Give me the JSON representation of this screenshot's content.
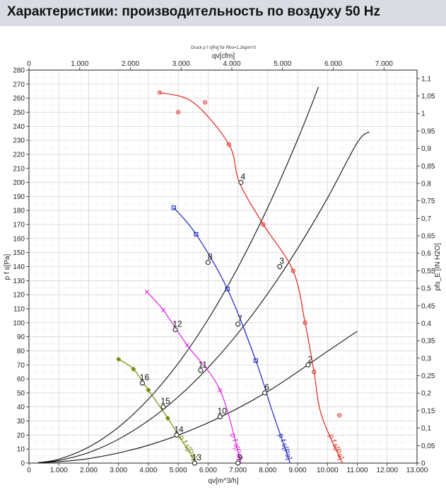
{
  "header": {
    "title": "Характеристики: производительность по воздуху 50 Hz"
  },
  "chart_data": {
    "type": "line",
    "title": "Druck p f s[Pa] für Rho=1,2kg/m^3",
    "xlabel": "qv[m^3/h]",
    "x2label": "qv[cfm]",
    "ylabel": "p f s[Pa]",
    "y2label": "pfs_E [IN H2O]",
    "xlim": [
      0,
      13000
    ],
    "ylim": [
      0,
      280
    ],
    "x2lim": [
      0,
      7651
    ],
    "y2lim": [
      0,
      1.124
    ],
    "grid": true,
    "x_ticks": [
      0,
      1000,
      2000,
      3000,
      4000,
      5000,
      6000,
      7000,
      8000,
      9000,
      10000,
      11000,
      12000,
      13000
    ],
    "x_tick_labels": [
      "0",
      "1.000",
      "2.000",
      "3.000",
      "4.000",
      "5.000",
      "6.000",
      "7.000",
      "8.000",
      "9.000",
      "10.000",
      "11.000",
      "12.000",
      "13.000"
    ],
    "y_ticks": [
      0,
      10,
      20,
      30,
      40,
      50,
      60,
      70,
      80,
      90,
      100,
      110,
      120,
      130,
      140,
      150,
      160,
      170,
      180,
      190,
      200,
      210,
      220,
      230,
      240,
      250,
      260,
      270,
      280
    ],
    "y_tick_labels": [
      "0",
      "10",
      "20",
      "30",
      "40",
      "50",
      "60",
      "70",
      "80",
      "90",
      "100",
      "110",
      "120",
      "130",
      "140",
      "150",
      "160",
      "170",
      "180",
      "190",
      "200",
      "210",
      "220",
      "230",
      "240",
      "250",
      "260",
      "270",
      "280"
    ],
    "x2_ticks": [
      0,
      1000,
      2000,
      3000,
      4000,
      5000,
      6000,
      7000
    ],
    "x2_tick_labels": [
      "0",
      "1.000",
      "2.000",
      "3.000",
      "4.000",
      "5.000",
      "6.000",
      "7.000"
    ],
    "y2_ticks": [
      0,
      0.05,
      0.1,
      0.15,
      0.2,
      0.25,
      0.3,
      0.35,
      0.4,
      0.45,
      0.5,
      0.55,
      0.6,
      0.65,
      0.7,
      0.75,
      0.8,
      0.85,
      0.9,
      0.95,
      1.0,
      1.05,
      1.1
    ],
    "y2_tick_labels": [
      "0",
      "0,05",
      "0,1",
      "0,15",
      "0,2",
      "0,25",
      "0,3",
      "0,35",
      "0,4",
      "0,45",
      "0,5",
      "0,55",
      "0,6",
      "0,65",
      "0,7",
      "0,75",
      "0,8",
      "0,85",
      "0,9",
      "0,95",
      "1",
      "1,05",
      "1,1"
    ],
    "series": [
      {
        "label": "p f s[Pa]",
        "color": "#e0281e",
        "marker": "circle",
        "x": [
          4380,
          5500,
          6700,
          7050,
          7850,
          8850,
          9250,
          9550,
          9800,
          10500
        ],
        "y": [
          264,
          257,
          227,
          200,
          170,
          137,
          100,
          65,
          34,
          0
        ],
        "marker_x": [
          4380,
          5000,
          5900,
          6700,
          7850,
          8850,
          9250,
          9550,
          10400
        ],
        "marker_y": [
          264,
          250,
          257,
          227,
          170,
          137,
          100,
          65,
          34
        ]
      },
      {
        "label": "p f s[Pa]",
        "color": "#1a24c0",
        "marker": "square",
        "x": [
          4850,
          5600,
          6650,
          7600,
          8150,
          8750
        ],
        "y": [
          182,
          163,
          124,
          73,
          37,
          0
        ],
        "marker_x": [
          4850,
          5600,
          6650,
          7600
        ],
        "marker_y": [
          182,
          163,
          124,
          73
        ]
      },
      {
        "label": "p f s[Pa]",
        "color": "#e020e0",
        "marker": "x",
        "x": [
          3950,
          4500,
          5300,
          6400,
          7100
        ],
        "y": [
          122,
          109,
          84,
          52,
          0
        ],
        "marker_x": [
          3950,
          4500,
          5300,
          6400
        ],
        "marker_y": [
          122,
          109,
          84,
          52
        ]
      },
      {
        "label": "p f s[Pa]",
        "color": "#7a8a10",
        "marker": "diamond",
        "x": [
          3000,
          3500,
          4000,
          4650,
          5600
        ],
        "y": [
          74,
          67,
          52,
          32,
          0
        ],
        "marker_x": [
          3000,
          3500,
          4000,
          4650
        ],
        "marker_y": [
          74,
          67,
          52,
          32
        ]
      }
    ],
    "system_curves": [
      {
        "color": "#111111",
        "x": [
          300,
          1000,
          2000,
          3000,
          4000,
          5000,
          6000,
          7000,
          8000,
          9000,
          9700
        ],
        "y": [
          0.3,
          2.8,
          11.4,
          25.6,
          45.5,
          71.1,
          102.4,
          139.4,
          182.1,
          230.5,
          268
        ]
      },
      {
        "color": "#111111",
        "x": [
          300,
          1000,
          2000,
          3000,
          4000,
          5000,
          6000,
          7000,
          8000,
          9000,
          10000,
          11000,
          11400
        ],
        "y": [
          0.2,
          1.9,
          7.5,
          17,
          30.2,
          47.2,
          68,
          92.5,
          120.8,
          152.9,
          188.8,
          228.4,
          236
        ]
      },
      {
        "color": "#111111",
        "x": [
          300,
          2000,
          4000,
          6000,
          8000,
          10000,
          11000
        ],
        "y": [
          0.1,
          3.2,
          12.7,
          28.7,
          51,
          79.6,
          94
        ]
      }
    ],
    "operating_points": [
      {
        "label": "2",
        "x": 9350,
        "y": 70
      },
      {
        "label": "3",
        "x": 8400,
        "y": 140
      },
      {
        "label": "4",
        "x": 7100,
        "y": 200
      },
      {
        "label": "6",
        "x": 7900,
        "y": 50
      },
      {
        "label": "7",
        "x": 7000,
        "y": 99
      },
      {
        "label": "8",
        "x": 6000,
        "y": 143
      },
      {
        "label": "9",
        "x": 7000,
        "y": 0
      },
      {
        "label": "10",
        "x": 6400,
        "y": 33
      },
      {
        "label": "11",
        "x": 5750,
        "y": 66
      },
      {
        "label": "12",
        "x": 4900,
        "y": 95
      },
      {
        "label": "13",
        "x": 5550,
        "y": 0
      },
      {
        "label": "14",
        "x": 4950,
        "y": 20
      },
      {
        "label": "15",
        "x": 4500,
        "y": 40
      },
      {
        "label": "16",
        "x": 3800,
        "y": 57
      }
    ]
  }
}
